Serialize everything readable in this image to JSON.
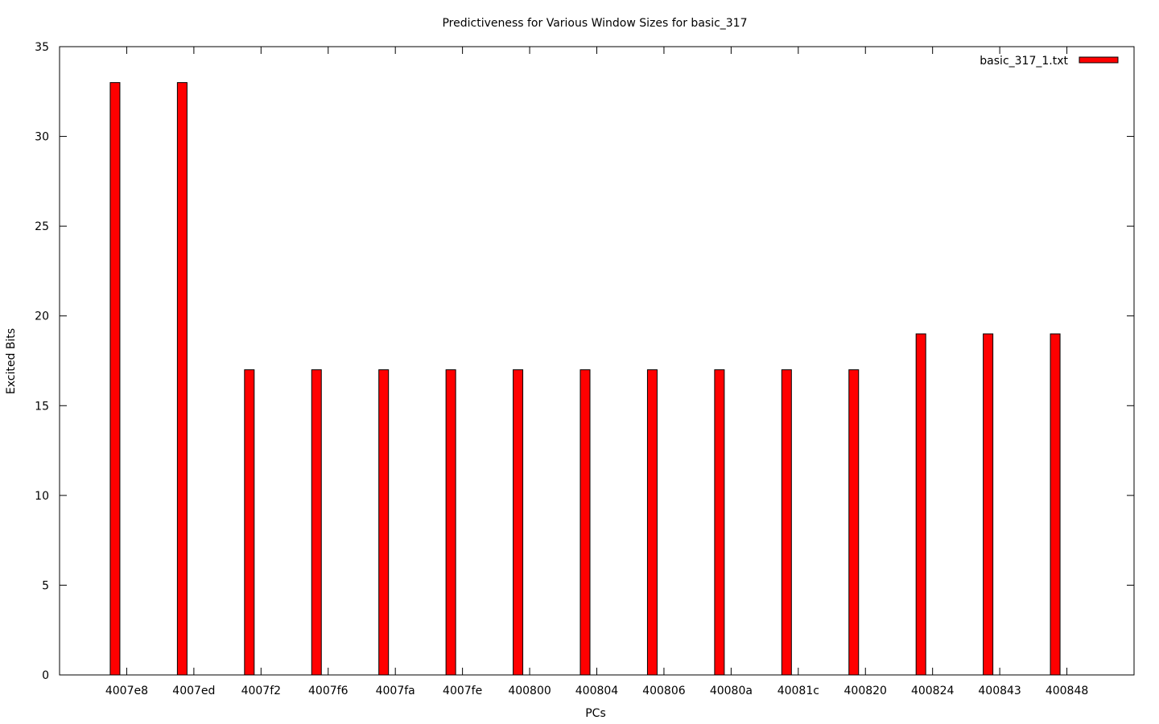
{
  "chart_data": {
    "type": "bar",
    "title": "Predictiveness for Various Window Sizes for basic_317",
    "xlabel": "PCs",
    "ylabel": "Excited Bits",
    "ylim": [
      0,
      35
    ],
    "yticks": [
      0,
      5,
      10,
      15,
      20,
      25,
      30,
      35
    ],
    "grid": false,
    "legend_position": "top-right",
    "categories": [
      "4007e8",
      "4007ed",
      "4007f2",
      "4007f6",
      "4007fa",
      "4007fe",
      "400800",
      "400804",
      "400806",
      "40080a",
      "40081c",
      "400820",
      "400824",
      "400843",
      "400848"
    ],
    "series": [
      {
        "name": "basic_317_1.txt",
        "color": "#ff0000",
        "values": [
          33,
          33,
          17,
          17,
          17,
          17,
          17,
          17,
          17,
          17,
          17,
          17,
          19,
          19,
          19
        ]
      }
    ]
  }
}
